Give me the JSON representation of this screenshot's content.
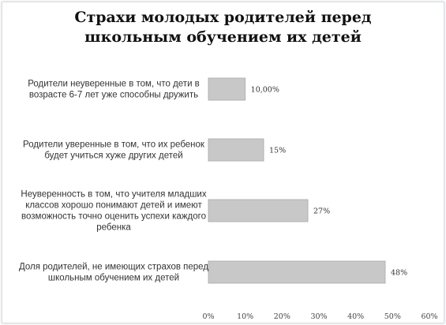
{
  "chart_data": {
    "type": "bar",
    "orientation": "horizontal",
    "title_lines": [
      "Страхи молодых родителей перед",
      "школьным обучением их детей"
    ],
    "categories": [
      {
        "lines": [
          "Родители неуверенные в том, что дети в",
          "возрасте 6-7 лет уже способны дружить"
        ]
      },
      {
        "lines": [
          "Родители уверенные в том, что их ребенок",
          "будет учиться хуже других детей"
        ]
      },
      {
        "lines": [
          "Неуверенность в том, что учителя младших",
          "классов хорошо понимают детей и имеют",
          "возможность точно оценить успехи каждого",
          "ребенка"
        ]
      },
      {
        "lines": [
          "Доля родителей, не имеющих страхов перед",
          "школьным обучением их детей"
        ]
      }
    ],
    "values": [
      10,
      15,
      27,
      48
    ],
    "data_labels": [
      "10,00%",
      "15%",
      "27%",
      "48%"
    ],
    "xlim": [
      0,
      60
    ],
    "xticks": [
      "0%",
      "10%",
      "20%",
      "30%",
      "40%",
      "50%",
      "60%"
    ],
    "grid": false,
    "bar_color": "#c8c8c8",
    "bar_border_color": "#a9a9a9"
  }
}
